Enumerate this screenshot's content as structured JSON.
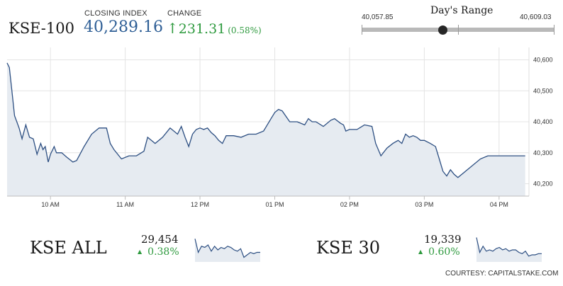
{
  "header": {
    "index_name": "KSE-100",
    "closing_label": "CLOSING INDEX",
    "closing_value": "40,289.16",
    "change_label": "CHANGE",
    "change_value": "231.31",
    "change_percent": "(0.58%)",
    "up_color": "#2e9a3e",
    "value_color": "#2f5f96"
  },
  "days_range": {
    "title": "Day's Range",
    "low_label": "40,057.85",
    "high_label": "40,609.03",
    "low": 40057.85,
    "high": 40609.03,
    "current": 40289.16
  },
  "chart_data": [
    {
      "type": "area",
      "series": [
        {
          "points": [
            [
              9.42,
              40590
            ],
            [
              9.45,
              40575
            ],
            [
              9.48,
              40510
            ],
            [
              9.52,
              40420
            ],
            [
              9.55,
              40400
            ],
            [
              9.58,
              40380
            ],
            [
              9.62,
              40345
            ],
            [
              9.67,
              40390
            ],
            [
              9.72,
              40350
            ],
            [
              9.77,
              40345
            ],
            [
              9.82,
              40295
            ],
            [
              9.87,
              40330
            ],
            [
              9.9,
              40310
            ],
            [
              9.93,
              40320
            ],
            [
              9.97,
              40270
            ],
            [
              10.0,
              40295
            ],
            [
              10.05,
              40320
            ],
            [
              10.08,
              40300
            ],
            [
              10.15,
              40300
            ],
            [
              10.22,
              40285
            ],
            [
              10.3,
              40270
            ],
            [
              10.35,
              40275
            ],
            [
              10.45,
              40320
            ],
            [
              10.55,
              40360
            ],
            [
              10.65,
              40380
            ],
            [
              10.75,
              40380
            ],
            [
              10.8,
              40330
            ],
            [
              10.85,
              40310
            ],
            [
              10.95,
              40280
            ],
            [
              11.05,
              40290
            ],
            [
              11.15,
              40290
            ],
            [
              11.25,
              40305
            ],
            [
              11.3,
              40350
            ],
            [
              11.4,
              40330
            ],
            [
              11.5,
              40350
            ],
            [
              11.6,
              40380
            ],
            [
              11.7,
              40360
            ],
            [
              11.75,
              40385
            ],
            [
              11.8,
              40350
            ],
            [
              11.85,
              40320
            ],
            [
              11.9,
              40360
            ],
            [
              11.95,
              40375
            ],
            [
              12.0,
              40380
            ],
            [
              12.05,
              40375
            ],
            [
              12.1,
              40380
            ],
            [
              12.15,
              40365
            ],
            [
              12.2,
              40355
            ],
            [
              12.25,
              40340
            ],
            [
              12.3,
              40330
            ],
            [
              12.35,
              40355
            ],
            [
              12.45,
              40355
            ],
            [
              12.55,
              40350
            ],
            [
              12.65,
              40360
            ],
            [
              12.75,
              40360
            ],
            [
              12.85,
              40370
            ],
            [
              12.9,
              40390
            ],
            [
              12.95,
              40410
            ],
            [
              13.0,
              40430
            ],
            [
              13.05,
              40440
            ],
            [
              13.1,
              40435
            ],
            [
              13.2,
              40400
            ],
            [
              13.3,
              40400
            ],
            [
              13.4,
              40390
            ],
            [
              13.45,
              40410
            ],
            [
              13.5,
              40400
            ],
            [
              13.55,
              40400
            ],
            [
              13.65,
              40385
            ],
            [
              13.75,
              40405
            ],
            [
              13.8,
              40410
            ],
            [
              13.88,
              40395
            ],
            [
              13.92,
              40390
            ],
            [
              13.95,
              40370
            ],
            [
              14.0,
              40375
            ],
            [
              14.1,
              40375
            ],
            [
              14.2,
              40390
            ],
            [
              14.3,
              40385
            ],
            [
              14.35,
              40330
            ],
            [
              14.42,
              40290
            ],
            [
              14.5,
              40315
            ],
            [
              14.58,
              40330
            ],
            [
              14.65,
              40340
            ],
            [
              14.7,
              40330
            ],
            [
              14.75,
              40360
            ],
            [
              14.8,
              40350
            ],
            [
              14.85,
              40355
            ],
            [
              14.9,
              40350
            ],
            [
              14.95,
              40340
            ],
            [
              15.0,
              40340
            ],
            [
              15.08,
              40330
            ],
            [
              15.15,
              40320
            ],
            [
              15.2,
              40280
            ],
            [
              15.25,
              40240
            ],
            [
              15.3,
              40225
            ],
            [
              15.35,
              40245
            ],
            [
              15.4,
              40230
            ],
            [
              15.45,
              40220
            ],
            [
              15.55,
              40240
            ],
            [
              15.75,
              40280
            ],
            [
              15.85,
              40290
            ],
            [
              16.35,
              40290
            ]
          ]
        }
      ],
      "x_ticks": [
        10,
        11,
        12,
        13,
        14,
        15,
        16
      ],
      "x_tick_labels": [
        "10 AM",
        "11 AM",
        "12 PM",
        "01 PM",
        "02 PM",
        "03 PM",
        "04 PM"
      ],
      "y_ticks": [
        40200,
        40300,
        40400,
        40500,
        40600
      ],
      "y_tick_labels": [
        "40,200",
        "40,300",
        "40,400",
        "40,500",
        "40,600"
      ],
      "xlim": [
        9.42,
        16.4
      ],
      "ylim": [
        40160,
        40640
      ],
      "grid": true,
      "line_color": "#2d4f82",
      "fill_color": "#e6ebf1"
    },
    {
      "type": "area",
      "series": [
        {
          "values": [
            0.85,
            0.3,
            0.55,
            0.5,
            0.6,
            0.35,
            0.55,
            0.4,
            0.5,
            0.45,
            0.55,
            0.5,
            0.4,
            0.35,
            0.45,
            0.1,
            0.2,
            0.3,
            0.25,
            0.3,
            0.3
          ]
        }
      ],
      "line_color": "#2d4f82",
      "fill_color": "#e6ebf1"
    },
    {
      "type": "area",
      "series": [
        {
          "values": [
            0.9,
            0.3,
            0.55,
            0.35,
            0.4,
            0.35,
            0.45,
            0.5,
            0.4,
            0.45,
            0.35,
            0.4,
            0.4,
            0.3,
            0.25,
            0.35,
            0.15,
            0.2,
            0.2,
            0.25,
            0.25
          ]
        }
      ],
      "line_color": "#2d4f82",
      "fill_color": "#e6ebf1"
    }
  ],
  "footer": {
    "kse_all": {
      "name": "KSE ALL",
      "value": "29,454",
      "change": "0.38%"
    },
    "kse_30": {
      "name": "KSE 30",
      "value": "19,339",
      "change": "0.60%"
    },
    "courtesy": "COURTESY: CAPITALSTAKE.COM"
  }
}
